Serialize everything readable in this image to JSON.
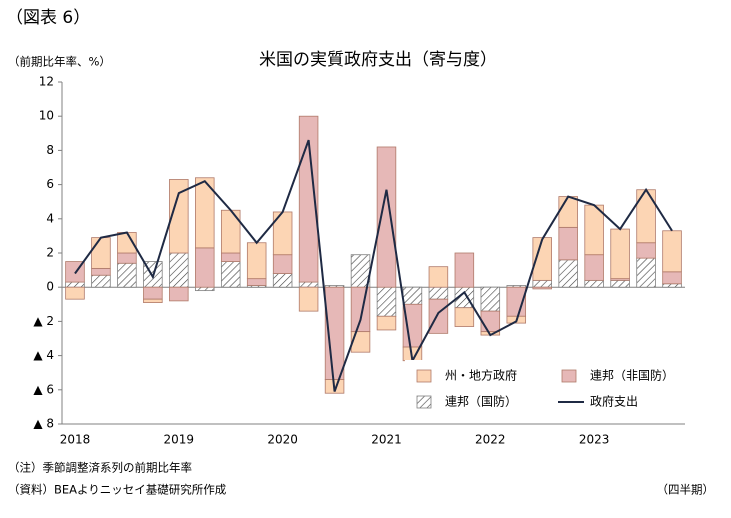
{
  "chart_data": {
    "type": "bar",
    "label": "（図表 6）",
    "title": "米国の実質政府支出（寄与度）",
    "y_axis_label": "（前期比年率、%）",
    "x_axis_label": "（四半期）",
    "notes": [
      "（注）季節調整済系列の前期比年率",
      "（資料）BEAよりニッセイ基礎研究所作成"
    ],
    "categories": [
      "2018",
      null,
      null,
      null,
      "2019",
      null,
      null,
      null,
      "2020",
      null,
      null,
      null,
      "2021",
      null,
      null,
      null,
      "2022",
      null,
      null,
      null,
      "2023",
      null,
      null,
      null
    ],
    "series": [
      {
        "name": "連邦（国防）",
        "type": "bar",
        "pattern": "hatch",
        "color": "#404040",
        "values": [
          0.3,
          0.7,
          1.4,
          1.5,
          2.0,
          -0.2,
          1.5,
          0.1,
          0.8,
          0.3,
          0.1,
          1.9,
          -1.7,
          -1.0,
          -0.7,
          -1.2,
          -1.4,
          0.1,
          0.4,
          1.6,
          0.4,
          0.4,
          1.7,
          0.2
        ]
      },
      {
        "name": "連邦（非国防）",
        "type": "bar",
        "color": "#e6b8b7",
        "values": [
          1.2,
          0.4,
          0.6,
          -0.7,
          -0.8,
          2.3,
          0.5,
          0.4,
          1.1,
          9.7,
          -5.4,
          -2.6,
          8.2,
          -2.5,
          -2.0,
          2.0,
          -1.2,
          -1.7,
          -0.1,
          1.9,
          1.5,
          0.1,
          0.9,
          0.7
        ]
      },
      {
        "name": "州・地方政府",
        "type": "bar",
        "color": "#fcd5b4",
        "values": [
          -0.7,
          1.8,
          1.2,
          -0.2,
          4.3,
          4.1,
          2.5,
          2.1,
          2.5,
          -1.4,
          -0.8,
          -1.2,
          -0.8,
          -0.8,
          1.2,
          -1.1,
          -0.2,
          -0.4,
          2.5,
          1.8,
          2.9,
          2.9,
          3.1,
          2.4
        ]
      },
      {
        "name": "政府支出",
        "type": "line",
        "color": "#1f2a44",
        "values": [
          0.8,
          2.9,
          3.2,
          0.6,
          5.5,
          6.2,
          4.5,
          2.6,
          4.4,
          8.6,
          -6.1,
          -1.9,
          5.7,
          -4.3,
          -1.5,
          -0.3,
          -2.8,
          -2.0,
          2.8,
          5.3,
          4.8,
          3.4,
          5.7,
          3.3
        ]
      }
    ],
    "legend_order": [
      2,
      1,
      0,
      3
    ],
    "ylim": [
      -8,
      12
    ],
    "yticks": [
      {
        "value": -8,
        "label": "▲ 8"
      },
      {
        "value": -6,
        "label": "▲ 6"
      },
      {
        "value": -4,
        "label": "▲ 4"
      },
      {
        "value": -2,
        "label": "▲ 2"
      },
      0,
      2,
      4,
      6,
      8,
      10,
      12
    ],
    "grid": false,
    "legend": "lower right"
  }
}
